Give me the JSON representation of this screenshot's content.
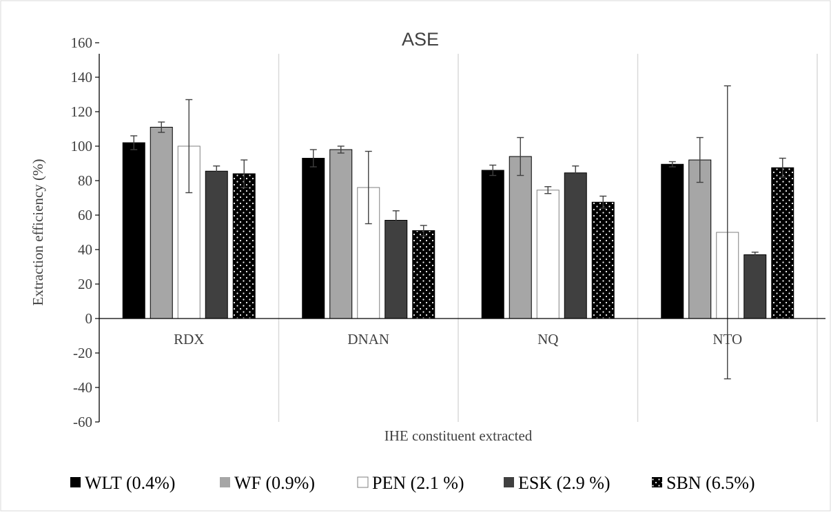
{
  "chart_data": {
    "type": "bar",
    "title": "ASE",
    "xlabel": "IHE constituent extracted",
    "ylabel": "Extraction efficiency (%)",
    "ylim": [
      -60,
      160
    ],
    "yticks": [
      -60,
      -40,
      -20,
      0,
      20,
      40,
      60,
      80,
      100,
      120,
      140,
      160
    ],
    "categories": [
      "RDX",
      "DNAN",
      "NQ",
      "NTO"
    ],
    "grid": false,
    "legend_position": "bottom",
    "series": [
      {
        "name": "WLT (0.4%)",
        "color": "#000000",
        "pattern": "solid",
        "values": [
          102,
          93,
          86,
          89.5
        ],
        "errors": [
          4,
          5,
          3,
          1.5
        ]
      },
      {
        "name": "WF (0.9%)",
        "color": "#a6a6a6",
        "pattern": "solid",
        "values": [
          111,
          98,
          94,
          92
        ],
        "errors": [
          3,
          2,
          11,
          13
        ]
      },
      {
        "name": "PEN (2.1 %)",
        "color": "#ffffff",
        "pattern": "solid",
        "values": [
          100,
          76,
          74.5,
          50
        ],
        "errors": [
          27,
          21,
          2,
          85
        ]
      },
      {
        "name": "ESK (2.9 %)",
        "color": "#404040",
        "pattern": "solid",
        "values": [
          85.5,
          57,
          84.5,
          37
        ],
        "errors": [
          3,
          5.5,
          4,
          1.5
        ]
      },
      {
        "name": "SBN (6.5%)",
        "color": "#000000",
        "pattern": "dotted",
        "values": [
          84,
          51,
          67.5,
          87.5
        ],
        "errors": [
          8,
          3,
          3.5,
          5.5
        ]
      }
    ]
  }
}
